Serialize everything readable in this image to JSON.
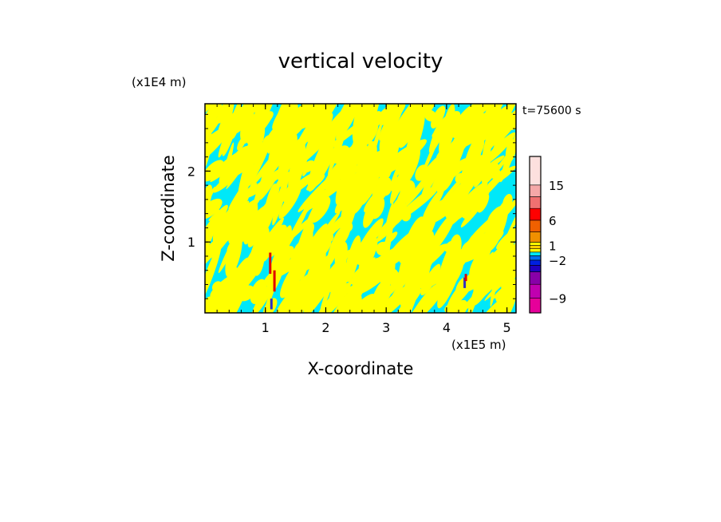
{
  "chart_data": {
    "type": "heatmap",
    "title": "vertical velocity",
    "xlabel": "X-coordinate",
    "ylabel": "Z-coordinate",
    "x_scale_label": "(x1E5 m)",
    "y_scale_label": "(x1E4 m)",
    "time_label": "t=75600 s",
    "xlim": [
      0,
      5.15
    ],
    "ylim": [
      0,
      2.95
    ],
    "x_ticks": [
      1,
      2,
      3,
      4,
      5
    ],
    "y_ticks": [
      1,
      2
    ],
    "x_tick_labels": [
      "1",
      "2",
      "3",
      "4",
      "5"
    ],
    "y_tick_labels": [
      "1",
      "2"
    ],
    "field_colors": {
      "background": "#00e8f8",
      "positive": "#ffff00",
      "strong_up": "#e00000",
      "strong_down": "#3030c0"
    },
    "colorbar": {
      "levels": [
        -12,
        -9,
        -6,
        -4,
        -3,
        -2,
        -1,
        0,
        0.5,
        1,
        2,
        4,
        6,
        9,
        12,
        15,
        20
      ],
      "colors": [
        "#e6009a",
        "#c000b0",
        "#8800a8",
        "#2000c0",
        "#0020e0",
        "#0070f0",
        "#00e8f8",
        "#ffff00",
        "#ffd000",
        "#ffff00",
        "#f09000",
        "#f06000",
        "#ff0000",
        "#f07070",
        "#f5a8a8",
        "#fde0de"
      ],
      "tick_labels": [
        {
          "value": 15,
          "label": "15"
        },
        {
          "value": 6,
          "label": "6"
        },
        {
          "value": 1,
          "label": "1"
        },
        {
          "value": -2,
          "label": "−2"
        },
        {
          "value": -9,
          "label": "−9"
        }
      ]
    }
  }
}
